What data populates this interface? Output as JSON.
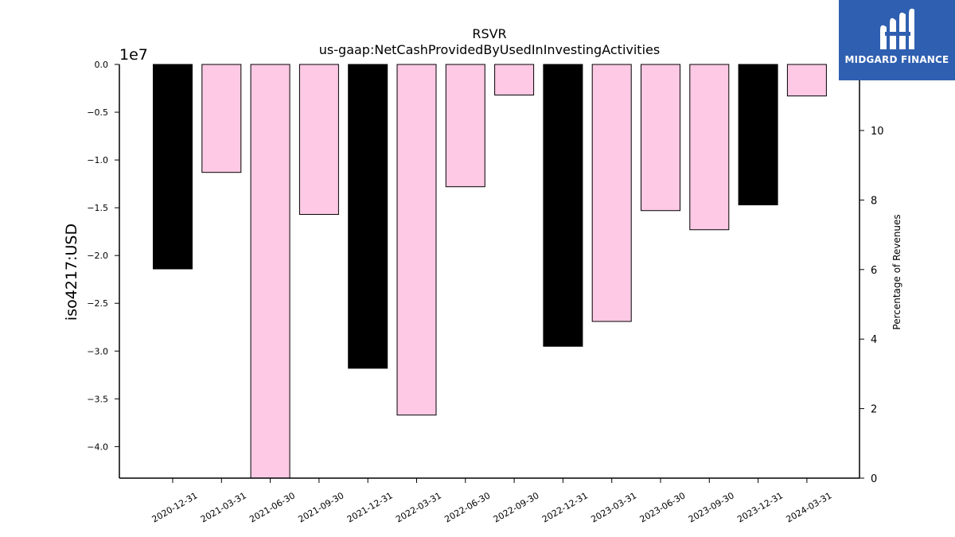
{
  "chart_data": {
    "type": "bar",
    "title": "RSVR",
    "subtitle": "us-gaap:NetCashProvidedByUsedInInvestingActivities",
    "ylabel": "iso4217:USD",
    "y_offset_label": "1e7",
    "y2label": "Percentage of Revenues",
    "categories": [
      "2020-12-31",
      "2021-03-31",
      "2021-06-30",
      "2021-09-30",
      "2021-12-31",
      "2022-03-31",
      "2022-06-30",
      "2022-09-30",
      "2022-12-31",
      "2023-03-31",
      "2023-06-30",
      "2023-09-30",
      "2023-12-31",
      "2024-03-31"
    ],
    "values": [
      -21400000,
      -11300000,
      -43300000,
      -15700000,
      -31800000,
      -36700000,
      -12800000,
      -3200000,
      -29500000,
      -26900000,
      -15300000,
      -17300000,
      -14700000,
      -3300000
    ],
    "bar_colors": [
      "#000000",
      "#fdc9e4",
      "#fdc9e4",
      "#fdc9e4",
      "#000000",
      "#fdc9e4",
      "#fdc9e4",
      "#fdc9e4",
      "#000000",
      "#fdc9e4",
      "#fdc9e4",
      "#fdc9e4",
      "#000000",
      "#fdc9e4"
    ],
    "ylim": [
      -43300000,
      0
    ],
    "yticks": [
      0.0,
      -0.5,
      -1.0,
      -1.5,
      -2.0,
      -2.5,
      -3.0,
      -3.5,
      -4.0
    ],
    "ytick_labels": [
      "0.0",
      "−0.5",
      "−1.0",
      "−1.5",
      "−2.0",
      "−2.5",
      "−3.0",
      "−3.5",
      "−4.0"
    ],
    "y2lim": [
      0,
      11.9
    ],
    "y2ticks": [
      0,
      2,
      4,
      6,
      8,
      10
    ],
    "y2tick_labels": [
      "0",
      "2",
      "4",
      "6",
      "8",
      "10"
    ],
    "grid": false
  },
  "logo": {
    "text": "MIDGARD FINANCE",
    "background": "#2f5fb0"
  }
}
